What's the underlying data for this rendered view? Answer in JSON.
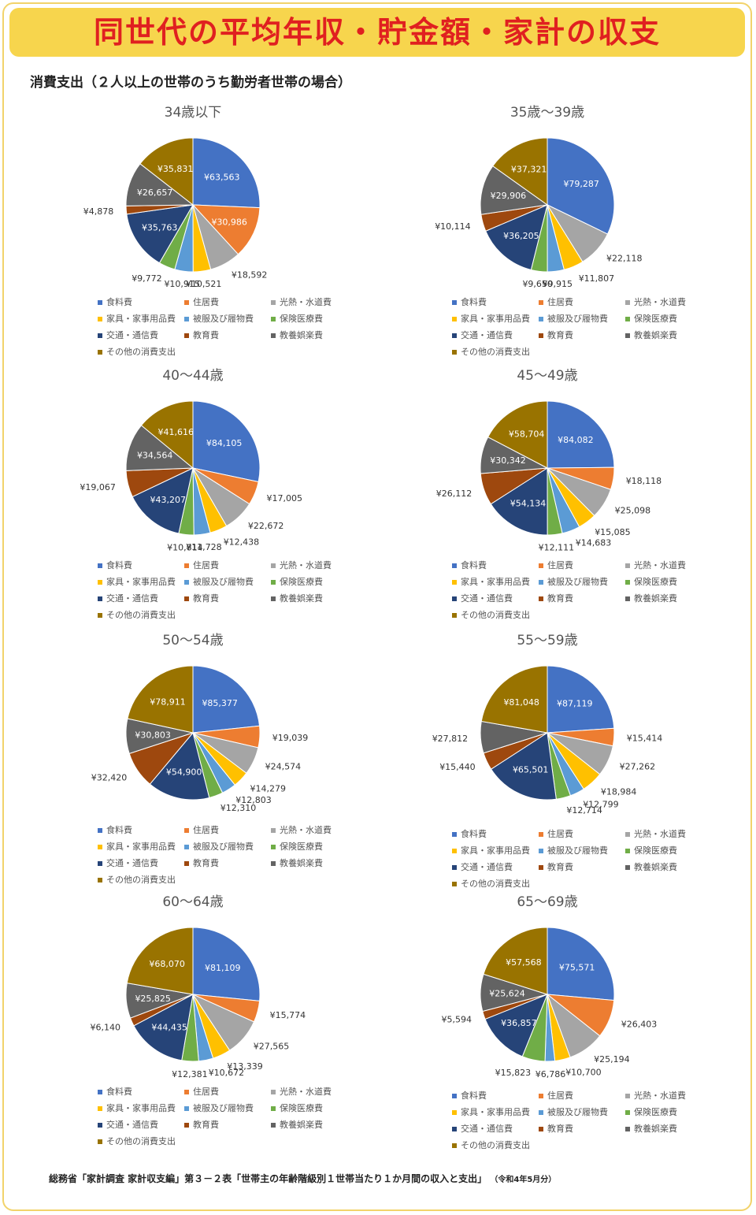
{
  "header": {
    "title": "同世代の平均年収・貯金額・家計の収支",
    "subtitle": "消費支出（２人以上の世帯のうち勤労者世帯の場合）"
  },
  "legend": [
    {
      "label": "食料費",
      "color": "#4472c4"
    },
    {
      "label": "住居費",
      "color": "#ed7d31"
    },
    {
      "label": "光熱・水道費",
      "color": "#a5a5a5"
    },
    {
      "label": "家具・家事用品費",
      "color": "#ffc000"
    },
    {
      "label": "被服及び履物費",
      "color": "#5b9bd5"
    },
    {
      "label": "保険医療費",
      "color": "#70ad47"
    },
    {
      "label": "交通・通信費",
      "color": "#264478"
    },
    {
      "label": "教育費",
      "color": "#9e480e"
    },
    {
      "label": "教養娯楽費",
      "color": "#636363"
    },
    {
      "label": "その他の消費支出",
      "color": "#997300"
    }
  ],
  "chart_data": [
    {
      "type": "pie",
      "title": "34歳以下",
      "values": [
        63563,
        30986,
        18592,
        10521,
        10915,
        9772,
        35763,
        4878,
        26657,
        35831
      ],
      "labels": [
        "¥63,563",
        "¥30,986",
        "¥18,592",
        "¥10,521",
        "¥10,915",
        "¥9,772",
        "¥35,763",
        "¥4,878",
        "¥26,657",
        "¥35,831"
      ]
    },
    {
      "type": "pie",
      "title": "35歳～39歳",
      "values": [
        79287,
        0,
        22118,
        11807,
        9915,
        9650,
        36205,
        10114,
        29906,
        37321
      ],
      "labels": [
        "¥79,287",
        "",
        "¥22,118",
        "¥11,807",
        "¥9,915",
        "¥9,650",
        "¥36,205",
        "¥10,114",
        "¥29,906",
        "¥37,321"
      ]
    },
    {
      "type": "pie",
      "title": "40～44歳",
      "values": [
        84105,
        17005,
        22672,
        12438,
        11728,
        10814,
        43207,
        19067,
        34564,
        41616
      ],
      "labels": [
        "¥84,105",
        "¥17,005",
        "¥22,672",
        "¥12,438",
        "¥11,728",
        "¥10,814",
        "¥43,207",
        "¥19,067",
        "¥34,564",
        "¥41,616"
      ]
    },
    {
      "type": "pie",
      "title": "45～49歳",
      "values": [
        84082,
        18118,
        25098,
        15085,
        14683,
        12111,
        54134,
        26112,
        30342,
        58704
      ],
      "labels": [
        "¥84,082",
        "¥18,118",
        "¥25,098",
        "¥15,085",
        "¥14,683",
        "¥12,111",
        "¥54,134",
        "¥26,112",
        "¥30,342",
        "¥58,704"
      ]
    },
    {
      "type": "pie",
      "title": "50～54歳",
      "values": [
        85377,
        19039,
        24574,
        14279,
        12803,
        12310,
        54900,
        32420,
        30803,
        78911
      ],
      "labels": [
        "¥85,377",
        "¥19,039",
        "¥24,574",
        "¥14,279",
        "¥12,803",
        "¥12,310",
        "¥54,900",
        "¥32,420",
        "¥30,803",
        "¥78,911"
      ]
    },
    {
      "type": "pie",
      "title": "55～59歳",
      "values": [
        87119,
        15414,
        27262,
        18984,
        12799,
        12714,
        65501,
        15440,
        27812,
        81048
      ],
      "labels": [
        "¥87,119",
        "¥15,414",
        "¥27,262",
        "¥18,984",
        "¥12,799",
        "¥12,714",
        "¥65,501",
        "¥15,440",
        "¥27,812",
        "¥81,048"
      ]
    },
    {
      "type": "pie",
      "title": "60～64歳",
      "values": [
        81109,
        15774,
        27565,
        13339,
        10672,
        12381,
        44435,
        6140,
        25825,
        68070
      ],
      "labels": [
        "¥81,109",
        "¥15,774",
        "¥27,565",
        "¥13,339",
        "¥10,672",
        "¥12,381",
        "¥44,435",
        "¥6,140",
        "¥25,825",
        "¥68,070"
      ]
    },
    {
      "type": "pie",
      "title": "65～69歳",
      "values": [
        75571,
        26403,
        25194,
        10700,
        6786,
        15823,
        36857,
        5594,
        25624,
        57568
      ],
      "labels": [
        "¥75,571",
        "¥26,403",
        "¥25,194",
        "¥10,700",
        "¥6,786",
        "¥15,823",
        "¥36,857",
        "¥5,594",
        "¥25,624",
        "¥57,568"
      ]
    }
  ],
  "source": {
    "text": "総務省「家計調査 家計収支編」第３－２表「世帯主の年齢階級別１世帯当たり１か月間の収入と支出」",
    "note": "（令和4年5月分）"
  }
}
